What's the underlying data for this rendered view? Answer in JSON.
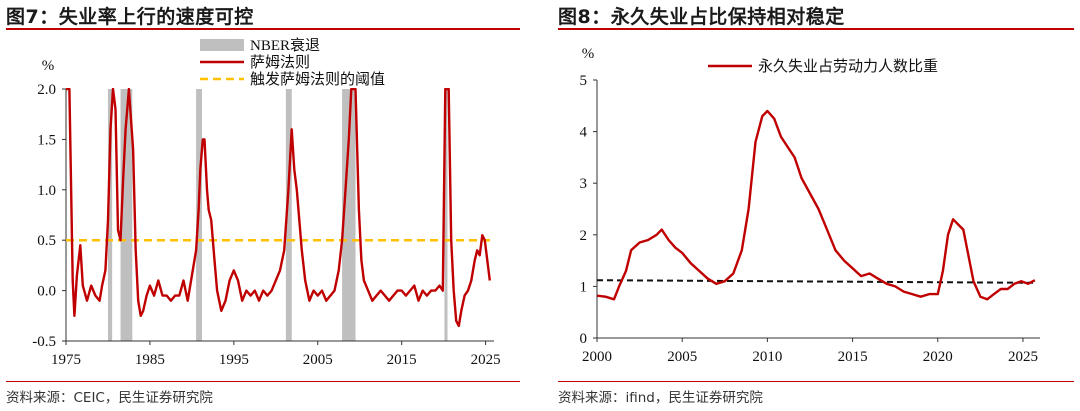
{
  "chart_data": [
    {
      "type": "line",
      "title": "图7：失业率上行的速度可控",
      "source": "资料来源：CEIC，民生证券研究院",
      "ylabel": "%",
      "xlabel": "",
      "xlim": [
        1975,
        2026
      ],
      "ylim": [
        -0.5,
        2.0
      ],
      "y_ticks": [
        "-0.5",
        "0.0",
        "0.5",
        "1.0",
        "1.5",
        "2.0"
      ],
      "x_ticks": [
        "1975",
        "1985",
        "1995",
        "2005",
        "2015",
        "2025"
      ],
      "legend_position": "top",
      "legend": [
        {
          "label": "NBER衰退",
          "type": "band",
          "color": "#bfbfbf"
        },
        {
          "label": "萨姆法则",
          "type": "line",
          "color": "#c00000"
        },
        {
          "label": "触发萨姆法则的阈值",
          "type": "dashed",
          "color": "#ffc000"
        }
      ],
      "recessions": [
        [
          1980.0,
          1980.5
        ],
        [
          1981.5,
          1982.9
        ],
        [
          1990.5,
          1991.2
        ],
        [
          2001.2,
          2001.9
        ],
        [
          2007.9,
          2009.5
        ],
        [
          2020.1,
          2020.4
        ]
      ],
      "threshold": 0.5,
      "series": [
        {
          "name": "萨姆法则",
          "color": "#c00000",
          "points": [
            [
              1975.0,
              2.0
            ],
            [
              1975.4,
              2.0
            ],
            [
              1975.8,
              0.1
            ],
            [
              1976.0,
              -0.25
            ],
            [
              1976.3,
              0.15
            ],
            [
              1976.7,
              0.45
            ],
            [
              1977.0,
              0.05
            ],
            [
              1977.5,
              -0.1
            ],
            [
              1978.0,
              0.05
            ],
            [
              1978.5,
              -0.05
            ],
            [
              1979.0,
              -0.1
            ],
            [
              1979.3,
              0.05
            ],
            [
              1979.7,
              0.2
            ],
            [
              1980.0,
              0.7
            ],
            [
              1980.3,
              1.6
            ],
            [
              1980.6,
              2.0
            ],
            [
              1980.9,
              1.8
            ],
            [
              1981.2,
              0.6
            ],
            [
              1981.5,
              0.5
            ],
            [
              1981.8,
              1.1
            ],
            [
              1982.1,
              1.6
            ],
            [
              1982.5,
              2.0
            ],
            [
              1983.0,
              1.4
            ],
            [
              1983.3,
              0.4
            ],
            [
              1983.6,
              -0.1
            ],
            [
              1983.9,
              -0.25
            ],
            [
              1984.2,
              -0.2
            ],
            [
              1984.6,
              -0.05
            ],
            [
              1985.0,
              0.05
            ],
            [
              1985.5,
              -0.05
            ],
            [
              1986.0,
              0.1
            ],
            [
              1986.5,
              -0.05
            ],
            [
              1987.0,
              -0.05
            ],
            [
              1987.5,
              -0.1
            ],
            [
              1988.0,
              -0.05
            ],
            [
              1988.5,
              -0.05
            ],
            [
              1989.0,
              0.1
            ],
            [
              1989.5,
              -0.1
            ],
            [
              1990.0,
              0.15
            ],
            [
              1990.5,
              0.4
            ],
            [
              1990.8,
              0.8
            ],
            [
              1991.0,
              1.2
            ],
            [
              1991.3,
              1.5
            ],
            [
              1991.5,
              1.5
            ],
            [
              1991.8,
              1.0
            ],
            [
              1992.0,
              0.8
            ],
            [
              1992.3,
              0.7
            ],
            [
              1992.7,
              0.3
            ],
            [
              1993.0,
              0.0
            ],
            [
              1993.5,
              -0.2
            ],
            [
              1994.0,
              -0.1
            ],
            [
              1994.5,
              0.1
            ],
            [
              1995.0,
              0.2
            ],
            [
              1995.5,
              0.1
            ],
            [
              1996.0,
              -0.1
            ],
            [
              1996.5,
              0.0
            ],
            [
              1997.0,
              -0.05
            ],
            [
              1997.5,
              0.0
            ],
            [
              1998.0,
              -0.1
            ],
            [
              1998.5,
              0.0
            ],
            [
              1999.0,
              -0.05
            ],
            [
              1999.5,
              0.0
            ],
            [
              2000.0,
              0.1
            ],
            [
              2000.5,
              0.2
            ],
            [
              2001.0,
              0.4
            ],
            [
              2001.5,
              1.0
            ],
            [
              2001.9,
              1.6
            ],
            [
              2002.2,
              1.2
            ],
            [
              2002.5,
              1.0
            ],
            [
              2002.8,
              0.7
            ],
            [
              2003.1,
              0.4
            ],
            [
              2003.5,
              0.1
            ],
            [
              2004.0,
              -0.1
            ],
            [
              2004.5,
              0.0
            ],
            [
              2005.0,
              -0.05
            ],
            [
              2005.5,
              0.0
            ],
            [
              2006.0,
              -0.1
            ],
            [
              2006.5,
              -0.05
            ],
            [
              2007.0,
              0.0
            ],
            [
              2007.5,
              0.2
            ],
            [
              2007.9,
              0.5
            ],
            [
              2008.3,
              1.0
            ],
            [
              2008.7,
              1.5
            ],
            [
              2009.0,
              2.0
            ],
            [
              2009.5,
              2.0
            ],
            [
              2009.9,
              0.8
            ],
            [
              2010.2,
              0.3
            ],
            [
              2010.5,
              0.1
            ],
            [
              2011.0,
              0.0
            ],
            [
              2011.5,
              -0.1
            ],
            [
              2012.0,
              -0.05
            ],
            [
              2012.5,
              0.0
            ],
            [
              2013.0,
              -0.05
            ],
            [
              2013.5,
              -0.1
            ],
            [
              2014.0,
              -0.05
            ],
            [
              2014.5,
              0.0
            ],
            [
              2015.0,
              0.0
            ],
            [
              2015.5,
              -0.05
            ],
            [
              2016.0,
              0.0
            ],
            [
              2016.5,
              0.05
            ],
            [
              2017.0,
              -0.1
            ],
            [
              2017.5,
              0.0
            ],
            [
              2018.0,
              -0.05
            ],
            [
              2018.5,
              0.0
            ],
            [
              2019.0,
              0.0
            ],
            [
              2019.5,
              0.05
            ],
            [
              2019.9,
              0.0
            ],
            [
              2020.2,
              2.0
            ],
            [
              2020.6,
              2.0
            ],
            [
              2020.9,
              0.5
            ],
            [
              2021.2,
              0.0
            ],
            [
              2021.5,
              -0.3
            ],
            [
              2021.8,
              -0.35
            ],
            [
              2022.1,
              -0.2
            ],
            [
              2022.5,
              -0.05
            ],
            [
              2022.9,
              0.0
            ],
            [
              2023.3,
              0.1
            ],
            [
              2023.7,
              0.3
            ],
            [
              2024.0,
              0.4
            ],
            [
              2024.3,
              0.35
            ],
            [
              2024.6,
              0.55
            ],
            [
              2024.9,
              0.5
            ],
            [
              2025.2,
              0.3
            ],
            [
              2025.5,
              0.1
            ]
          ]
        }
      ]
    },
    {
      "type": "line",
      "title": "图8：永久失业占比保持相对稳定",
      "source": "资料来源：ifind，民生证券研究院",
      "ylabel": "%",
      "xlabel": "",
      "xlim": [
        2000,
        2026
      ],
      "ylim": [
        0,
        5
      ],
      "y_ticks": [
        "0",
        "1",
        "2",
        "3",
        "4",
        "5"
      ],
      "x_ticks": [
        "2000",
        "2005",
        "2010",
        "2015",
        "2020",
        "2025"
      ],
      "legend_position": "top",
      "legend": [
        {
          "label": "永久失业占劳动力人数比重",
          "type": "line",
          "color": "#c00000"
        }
      ],
      "reference_line": {
        "from": [
          2000,
          1.12
        ],
        "to": [
          2025.7,
          1.07
        ],
        "color": "#111111",
        "style": "dashed"
      },
      "series": [
        {
          "name": "永久失业占劳动力人数比重",
          "color": "#c00000",
          "points": [
            [
              2000.0,
              0.82
            ],
            [
              2000.5,
              0.8
            ],
            [
              2001.0,
              0.75
            ],
            [
              2001.3,
              1.0
            ],
            [
              2001.7,
              1.3
            ],
            [
              2002.0,
              1.7
            ],
            [
              2002.5,
              1.85
            ],
            [
              2003.0,
              1.9
            ],
            [
              2003.5,
              2.0
            ],
            [
              2003.8,
              2.1
            ],
            [
              2004.2,
              1.9
            ],
            [
              2004.6,
              1.75
            ],
            [
              2005.0,
              1.65
            ],
            [
              2005.5,
              1.45
            ],
            [
              2006.0,
              1.3
            ],
            [
              2006.5,
              1.15
            ],
            [
              2007.0,
              1.05
            ],
            [
              2007.5,
              1.1
            ],
            [
              2008.0,
              1.25
            ],
            [
              2008.5,
              1.7
            ],
            [
              2008.9,
              2.5
            ],
            [
              2009.3,
              3.8
            ],
            [
              2009.7,
              4.3
            ],
            [
              2010.0,
              4.4
            ],
            [
              2010.4,
              4.25
            ],
            [
              2010.8,
              3.9
            ],
            [
              2011.2,
              3.7
            ],
            [
              2011.6,
              3.5
            ],
            [
              2012.0,
              3.1
            ],
            [
              2012.5,
              2.8
            ],
            [
              2013.0,
              2.5
            ],
            [
              2013.5,
              2.1
            ],
            [
              2014.0,
              1.7
            ],
            [
              2014.5,
              1.5
            ],
            [
              2015.0,
              1.35
            ],
            [
              2015.5,
              1.2
            ],
            [
              2016.0,
              1.25
            ],
            [
              2016.5,
              1.15
            ],
            [
              2017.0,
              1.05
            ],
            [
              2017.5,
              1.0
            ],
            [
              2018.0,
              0.9
            ],
            [
              2018.5,
              0.85
            ],
            [
              2019.0,
              0.8
            ],
            [
              2019.5,
              0.85
            ],
            [
              2020.0,
              0.85
            ],
            [
              2020.3,
              1.3
            ],
            [
              2020.6,
              2.0
            ],
            [
              2020.9,
              2.3
            ],
            [
              2021.2,
              2.2
            ],
            [
              2021.5,
              2.1
            ],
            [
              2021.8,
              1.6
            ],
            [
              2022.1,
              1.1
            ],
            [
              2022.5,
              0.8
            ],
            [
              2022.9,
              0.75
            ],
            [
              2023.3,
              0.85
            ],
            [
              2023.7,
              0.95
            ],
            [
              2024.1,
              0.95
            ],
            [
              2024.5,
              1.05
            ],
            [
              2024.9,
              1.1
            ],
            [
              2025.3,
              1.05
            ],
            [
              2025.7,
              1.12
            ]
          ]
        }
      ]
    }
  ]
}
